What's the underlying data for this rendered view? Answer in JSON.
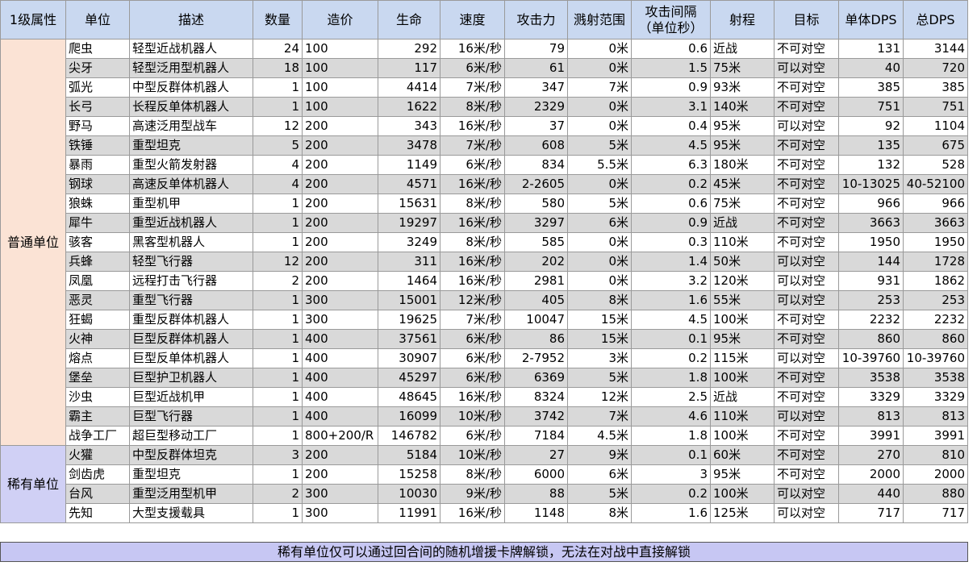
{
  "headers": [
    "1级属性",
    "单位",
    "描述",
    "数量",
    "造价",
    "生命",
    "速度",
    "攻击力",
    "溅射范围",
    "攻击间隔\n（单位秒）",
    "射程",
    "目标",
    "单体DPS",
    "总DPS"
  ],
  "categories": {
    "common": "普通单位",
    "rare": "稀有单位"
  },
  "rows": [
    {
      "unit": "爬虫",
      "desc": "轻型近战机器人",
      "count": "24",
      "cost": "100",
      "hp": "292",
      "speed": "16米/秒",
      "atk": "79",
      "splash": "0米",
      "interval": "0.6",
      "range": "近战",
      "target": "不可对空",
      "dps": "131",
      "total": "3144"
    },
    {
      "unit": "尖牙",
      "desc": "轻型泛用型机器人",
      "count": "18",
      "cost": "100",
      "hp": "117",
      "speed": "6米/秒",
      "atk": "61",
      "splash": "0米",
      "interval": "1.5",
      "range": "75米",
      "target": "可以对空",
      "dps": "40",
      "total": "720"
    },
    {
      "unit": "弧光",
      "desc": "中型反群体机器人",
      "count": "1",
      "cost": "100",
      "hp": "4414",
      "speed": "7米/秒",
      "atk": "347",
      "splash": "7米",
      "interval": "0.9",
      "range": "93米",
      "target": "不可对空",
      "dps": "385",
      "total": "385"
    },
    {
      "unit": "长弓",
      "desc": "长程反单体机器人",
      "count": "1",
      "cost": "100",
      "hp": "1622",
      "speed": "8米/秒",
      "atk": "2329",
      "splash": "0米",
      "interval": "3.1",
      "range": "140米",
      "target": "不可对空",
      "dps": "751",
      "total": "751"
    },
    {
      "unit": "野马",
      "desc": "高速泛用型战车",
      "count": "12",
      "cost": "200",
      "hp": "343",
      "speed": "16米/秒",
      "atk": "37",
      "splash": "0米",
      "interval": "0.4",
      "range": "95米",
      "target": "可以对空",
      "dps": "92",
      "total": "1104"
    },
    {
      "unit": "铁锤",
      "desc": "重型坦克",
      "count": "5",
      "cost": "200",
      "hp": "3478",
      "speed": "7米/秒",
      "atk": "608",
      "splash": "5米",
      "interval": "4.5",
      "range": "95米",
      "target": "不可对空",
      "dps": "135",
      "total": "675"
    },
    {
      "unit": "暴雨",
      "desc": "重型火箭发射器",
      "count": "4",
      "cost": "200",
      "hp": "1149",
      "speed": "6米/秒",
      "atk": "834",
      "splash": "5.5米",
      "interval": "6.3",
      "range": "180米",
      "target": "不可对空",
      "dps": "132",
      "total": "528"
    },
    {
      "unit": "钢球",
      "desc": "高速反单体机器人",
      "count": "4",
      "cost": "200",
      "hp": "4571",
      "speed": "16米/秒",
      "atk": "2-2605",
      "splash": "0米",
      "interval": "0.2",
      "range": "45米",
      "target": "不可对空",
      "dps": "10-13025",
      "total": "40-52100"
    },
    {
      "unit": "狼蛛",
      "desc": "重型机甲",
      "count": "1",
      "cost": "200",
      "hp": "15631",
      "speed": "8米/秒",
      "atk": "580",
      "splash": "5米",
      "interval": "0.6",
      "range": "75米",
      "target": "不可对空",
      "dps": "966",
      "total": "966"
    },
    {
      "unit": "犀牛",
      "desc": "重型近战机器人",
      "count": "1",
      "cost": "200",
      "hp": "19297",
      "speed": "16米/秒",
      "atk": "3297",
      "splash": "6米",
      "interval": "0.9",
      "range": "近战",
      "target": "不可对空",
      "dps": "3663",
      "total": "3663"
    },
    {
      "unit": "骇客",
      "desc": "黑客型机器人",
      "count": "1",
      "cost": "200",
      "hp": "3249",
      "speed": "8米/秒",
      "atk": "585",
      "splash": "0米",
      "interval": "0.3",
      "range": "110米",
      "target": "不可对空",
      "dps": "1950",
      "total": "1950"
    },
    {
      "unit": "兵蜂",
      "desc": "轻型飞行器",
      "count": "12",
      "cost": "200",
      "hp": "311",
      "speed": "16米/秒",
      "atk": "202",
      "splash": "0米",
      "interval": "1.4",
      "range": "50米",
      "target": "可以对空",
      "dps": "144",
      "total": "1728"
    },
    {
      "unit": "凤凰",
      "desc": "远程打击飞行器",
      "count": "2",
      "cost": "200",
      "hp": "1464",
      "speed": "16米/秒",
      "atk": "2981",
      "splash": "0米",
      "interval": "3.2",
      "range": "120米",
      "target": "可以对空",
      "dps": "931",
      "total": "1862"
    },
    {
      "unit": "恶灵",
      "desc": "重型飞行器",
      "count": "1",
      "cost": "300",
      "hp": "15001",
      "speed": "12米/秒",
      "atk": "405",
      "splash": "8米",
      "interval": "1.6",
      "range": "55米",
      "target": "可以对空",
      "dps": "253",
      "total": "253"
    },
    {
      "unit": "狂蝎",
      "desc": "重型反群体机器人",
      "count": "1",
      "cost": "300",
      "hp": "19625",
      "speed": "7米/秒",
      "atk": "10047",
      "splash": "15米",
      "interval": "4.5",
      "range": "100米",
      "target": "不可对空",
      "dps": "2232",
      "total": "2232"
    },
    {
      "unit": "火神",
      "desc": "巨型反群体机器人",
      "count": "1",
      "cost": "400",
      "hp": "37561",
      "speed": "6米/秒",
      "atk": "86",
      "splash": "15米",
      "interval": "0.1",
      "range": "95米",
      "target": "不可对空",
      "dps": "860",
      "total": "860"
    },
    {
      "unit": "熔点",
      "desc": "巨型反单体机器人",
      "count": "1",
      "cost": "400",
      "hp": "30907",
      "speed": "6米/秒",
      "atk": "2-7952",
      "splash": "3米",
      "interval": "0.2",
      "range": "115米",
      "target": "可以对空",
      "dps": "10-39760",
      "total": "10-39760"
    },
    {
      "unit": "堡垒",
      "desc": "巨型护卫机器人",
      "count": "1",
      "cost": "400",
      "hp": "45297",
      "speed": "6米/秒",
      "atk": "6369",
      "splash": "5米",
      "interval": "1.8",
      "range": "100米",
      "target": "不可对空",
      "dps": "3538",
      "total": "3538"
    },
    {
      "unit": "沙虫",
      "desc": "巨型近战机甲",
      "count": "1",
      "cost": "400",
      "hp": "48645",
      "speed": "16米/秒",
      "atk": "8324",
      "splash": "12米",
      "interval": "2.5",
      "range": "近战",
      "target": "不可对空",
      "dps": "3329",
      "total": "3329"
    },
    {
      "unit": "霸主",
      "desc": "巨型飞行器",
      "count": "1",
      "cost": "400",
      "hp": "16099",
      "speed": "10米/秒",
      "atk": "3742",
      "splash": "7米",
      "interval": "4.6",
      "range": "110米",
      "target": "可以对空",
      "dps": "813",
      "total": "813"
    },
    {
      "unit": "战争工厂",
      "desc": "超巨型移动工厂",
      "count": "1",
      "cost": "800+200/R",
      "hp": "146782",
      "speed": "6米/秒",
      "atk": "7184",
      "splash": "4.5米",
      "interval": "1.8",
      "range": "100米",
      "target": "不可对空",
      "dps": "3991",
      "total": "3991"
    },
    {
      "unit": "火獾",
      "desc": "中型反群体坦克",
      "count": "3",
      "cost": "200",
      "hp": "5184",
      "speed": "10米/秒",
      "atk": "27",
      "splash": "9米",
      "interval": "0.1",
      "range": "60米",
      "target": "不可对空",
      "dps": "270",
      "total": "810"
    },
    {
      "unit": "剑齿虎",
      "desc": "重型坦克",
      "count": "1",
      "cost": "200",
      "hp": "15258",
      "speed": "8米/秒",
      "atk": "6000",
      "splash": "6米",
      "interval": "3",
      "range": "95米",
      "target": "不可对空",
      "dps": "2000",
      "total": "2000"
    },
    {
      "unit": "台风",
      "desc": "重型泛用型机甲",
      "count": "2",
      "cost": "300",
      "hp": "10030",
      "speed": "9米/秒",
      "atk": "88",
      "splash": "5米",
      "interval": "0.2",
      "range": "100米",
      "target": "可以对空",
      "dps": "440",
      "total": "880"
    },
    {
      "unit": "先知",
      "desc": "大型支援载具",
      "count": "1",
      "cost": "300",
      "hp": "11991",
      "speed": "16米/秒",
      "atk": "1148",
      "splash": "8米",
      "interval": "1.6",
      "range": "125米",
      "target": "可以对空",
      "dps": "717",
      "total": "717"
    }
  ],
  "note": "稀有单位仅可以通过回合间的随机增援卡牌解锁，无法在对战中直接解锁"
}
